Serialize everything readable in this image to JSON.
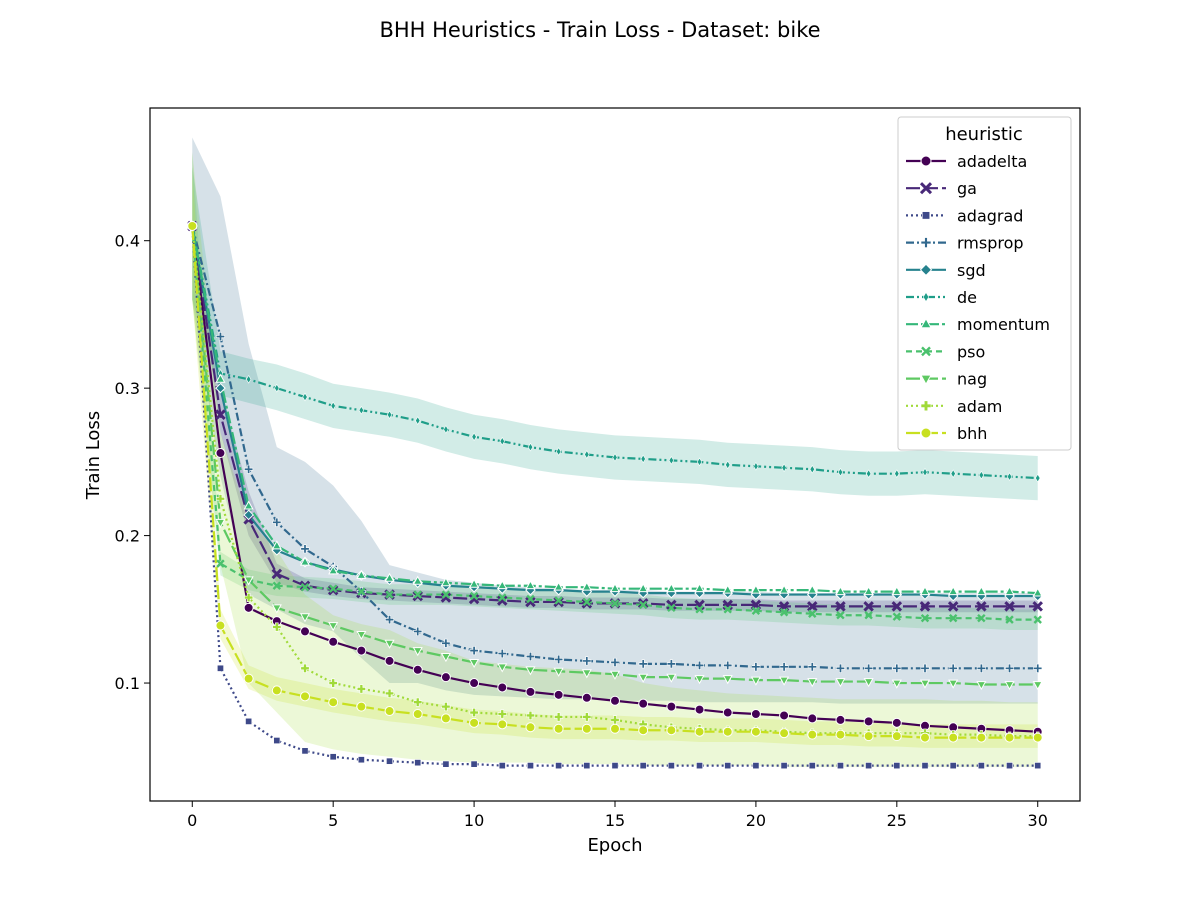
{
  "chart_data": {
    "type": "line",
    "title": "BHH Heuristics - Train Loss - Dataset: bike",
    "xlabel": "Epoch",
    "ylabel": "Train Loss",
    "xlim": [
      -1.5,
      31.5
    ],
    "ylim": [
      0.02,
      0.49
    ],
    "xticks": [
      0,
      5,
      10,
      15,
      20,
      25,
      30
    ],
    "yticks": [
      0.1,
      0.2,
      0.3,
      0.4
    ],
    "grid": false,
    "legend": {
      "title": "heuristic",
      "placement": "top-right"
    },
    "x": [
      0,
      1,
      2,
      3,
      4,
      5,
      6,
      7,
      8,
      9,
      10,
      11,
      12,
      13,
      14,
      15,
      16,
      17,
      18,
      19,
      20,
      21,
      22,
      23,
      24,
      25,
      26,
      27,
      28,
      29,
      30
    ],
    "series": [
      {
        "name": "adadelta",
        "color": "#440154",
        "marker": "circle",
        "dash": "solid",
        "values": [
          0.41,
          0.256,
          0.151,
          0.142,
          0.135,
          0.128,
          0.122,
          0.115,
          0.109,
          0.104,
          0.1,
          0.097,
          0.094,
          0.092,
          0.09,
          0.088,
          0.086,
          0.084,
          0.082,
          0.08,
          0.079,
          0.078,
          0.076,
          0.075,
          0.074,
          0.073,
          0.071,
          0.07,
          0.069,
          0.068,
          0.067
        ]
      },
      {
        "name": "ga",
        "color": "#482878",
        "marker": "x",
        "dash": "long-dash",
        "values": [
          0.41,
          0.282,
          0.211,
          0.174,
          0.166,
          0.163,
          0.161,
          0.16,
          0.159,
          0.158,
          0.157,
          0.156,
          0.155,
          0.155,
          0.154,
          0.154,
          0.154,
          0.153,
          0.153,
          0.153,
          0.153,
          0.152,
          0.152,
          0.152,
          0.152,
          0.152,
          0.152,
          0.152,
          0.152,
          0.152,
          0.152
        ],
        "band": [
          [
            0.41,
            0.41
          ],
          [
            0.27,
            0.3
          ],
          [
            0.2,
            0.23
          ],
          [
            0.168,
            0.181
          ],
          [
            0.162,
            0.171
          ],
          [
            0.159,
            0.168
          ],
          [
            0.157,
            0.165
          ],
          [
            0.156,
            0.164
          ],
          [
            0.155,
            0.163
          ],
          [
            0.154,
            0.162
          ],
          [
            0.153,
            0.161
          ],
          [
            0.152,
            0.16
          ],
          [
            0.151,
            0.159
          ],
          [
            0.151,
            0.159
          ],
          [
            0.15,
            0.158
          ],
          [
            0.15,
            0.158
          ],
          [
            0.15,
            0.158
          ],
          [
            0.149,
            0.157
          ],
          [
            0.149,
            0.157
          ],
          [
            0.149,
            0.157
          ],
          [
            0.149,
            0.157
          ],
          [
            0.148,
            0.156
          ],
          [
            0.148,
            0.156
          ],
          [
            0.148,
            0.156
          ],
          [
            0.148,
            0.156
          ],
          [
            0.148,
            0.156
          ],
          [
            0.148,
            0.156
          ],
          [
            0.148,
            0.156
          ],
          [
            0.148,
            0.156
          ],
          [
            0.148,
            0.156
          ],
          [
            0.148,
            0.156
          ]
        ]
      },
      {
        "name": "adagrad",
        "color": "#3e4989",
        "marker": "square",
        "dash": "dotted",
        "values": [
          0.41,
          0.11,
          0.074,
          0.061,
          0.054,
          0.05,
          0.048,
          0.047,
          0.046,
          0.045,
          0.045,
          0.044,
          0.044,
          0.044,
          0.044,
          0.044,
          0.044,
          0.044,
          0.044,
          0.044,
          0.044,
          0.044,
          0.044,
          0.044,
          0.044,
          0.044,
          0.044,
          0.044,
          0.044,
          0.044,
          0.044
        ]
      },
      {
        "name": "rmsprop",
        "color": "#31688e",
        "marker": "plus",
        "dash": "dash-dot",
        "values": [
          0.41,
          0.335,
          0.245,
          0.209,
          0.191,
          0.179,
          0.162,
          0.143,
          0.135,
          0.127,
          0.122,
          0.12,
          0.118,
          0.116,
          0.115,
          0.114,
          0.113,
          0.113,
          0.112,
          0.112,
          0.111,
          0.111,
          0.111,
          0.11,
          0.11,
          0.11,
          0.11,
          0.11,
          0.11,
          0.11,
          0.11
        ],
        "band": [
          [
            0.36,
            0.47
          ],
          [
            0.24,
            0.43
          ],
          [
            0.16,
            0.33
          ],
          [
            0.15,
            0.26
          ],
          [
            0.14,
            0.25
          ],
          [
            0.135,
            0.234
          ],
          [
            0.117,
            0.21
          ],
          [
            0.1,
            0.18
          ],
          [
            0.1,
            0.175
          ],
          [
            0.095,
            0.17
          ],
          [
            0.092,
            0.168
          ],
          [
            0.091,
            0.166
          ],
          [
            0.09,
            0.165
          ],
          [
            0.089,
            0.164
          ],
          [
            0.089,
            0.163
          ],
          [
            0.088,
            0.163
          ],
          [
            0.088,
            0.163
          ],
          [
            0.088,
            0.162
          ],
          [
            0.087,
            0.162
          ],
          [
            0.087,
            0.162
          ],
          [
            0.087,
            0.162
          ],
          [
            0.087,
            0.161
          ],
          [
            0.087,
            0.161
          ],
          [
            0.086,
            0.161
          ],
          [
            0.086,
            0.161
          ],
          [
            0.086,
            0.161
          ],
          [
            0.086,
            0.161
          ],
          [
            0.086,
            0.161
          ],
          [
            0.086,
            0.161
          ],
          [
            0.086,
            0.161
          ],
          [
            0.086,
            0.161
          ]
        ]
      },
      {
        "name": "sgd",
        "color": "#26828e",
        "marker": "diamond",
        "dash": "solid",
        "values": [
          0.41,
          0.3,
          0.214,
          0.19,
          0.182,
          0.177,
          0.173,
          0.17,
          0.168,
          0.166,
          0.165,
          0.164,
          0.163,
          0.163,
          0.162,
          0.162,
          0.161,
          0.161,
          0.161,
          0.161,
          0.16,
          0.16,
          0.16,
          0.16,
          0.16,
          0.16,
          0.16,
          0.159,
          0.159,
          0.159,
          0.159
        ]
      },
      {
        "name": "de",
        "color": "#1f9e89",
        "marker": "diamond-thin",
        "dash": "dash-dot-dot",
        "values": [
          0.41,
          0.31,
          0.306,
          0.3,
          0.294,
          0.288,
          0.285,
          0.282,
          0.278,
          0.272,
          0.267,
          0.264,
          0.26,
          0.257,
          0.255,
          0.253,
          0.252,
          0.251,
          0.25,
          0.248,
          0.247,
          0.246,
          0.245,
          0.243,
          0.242,
          0.242,
          0.243,
          0.242,
          0.241,
          0.24,
          0.239
        ],
        "band": [
          [
            0.36,
            0.45
          ],
          [
            0.295,
            0.325
          ],
          [
            0.29,
            0.32
          ],
          [
            0.285,
            0.316
          ],
          [
            0.279,
            0.31
          ],
          [
            0.273,
            0.303
          ],
          [
            0.27,
            0.3
          ],
          [
            0.267,
            0.297
          ],
          [
            0.263,
            0.293
          ],
          [
            0.257,
            0.287
          ],
          [
            0.252,
            0.282
          ],
          [
            0.249,
            0.279
          ],
          [
            0.245,
            0.275
          ],
          [
            0.242,
            0.272
          ],
          [
            0.24,
            0.27
          ],
          [
            0.238,
            0.268
          ],
          [
            0.237,
            0.267
          ],
          [
            0.236,
            0.266
          ],
          [
            0.235,
            0.265
          ],
          [
            0.233,
            0.263
          ],
          [
            0.232,
            0.262
          ],
          [
            0.231,
            0.261
          ],
          [
            0.23,
            0.26
          ],
          [
            0.228,
            0.258
          ],
          [
            0.227,
            0.257
          ],
          [
            0.227,
            0.257
          ],
          [
            0.228,
            0.258
          ],
          [
            0.227,
            0.257
          ],
          [
            0.226,
            0.256
          ],
          [
            0.225,
            0.255
          ],
          [
            0.224,
            0.254
          ]
        ]
      },
      {
        "name": "momentum",
        "color": "#35b779",
        "marker": "triangle-up",
        "dash": "long-dash-dot",
        "values": [
          0.41,
          0.306,
          0.22,
          0.193,
          0.182,
          0.176,
          0.173,
          0.171,
          0.169,
          0.168,
          0.167,
          0.166,
          0.166,
          0.165,
          0.165,
          0.164,
          0.164,
          0.164,
          0.164,
          0.163,
          0.163,
          0.163,
          0.163,
          0.162,
          0.162,
          0.162,
          0.162,
          0.162,
          0.162,
          0.162,
          0.161
        ]
      },
      {
        "name": "pso",
        "color": "#4ac16d",
        "marker": "x-small",
        "dash": "dashed",
        "values": [
          0.41,
          0.181,
          0.17,
          0.166,
          0.165,
          0.164,
          0.162,
          0.16,
          0.16,
          0.16,
          0.159,
          0.158,
          0.157,
          0.156,
          0.155,
          0.154,
          0.153,
          0.151,
          0.15,
          0.15,
          0.149,
          0.148,
          0.147,
          0.146,
          0.146,
          0.145,
          0.144,
          0.144,
          0.144,
          0.143,
          0.143
        ],
        "band": [
          [
            0.36,
            0.46
          ],
          [
            0.173,
            0.189
          ],
          [
            0.163,
            0.177
          ],
          [
            0.159,
            0.173
          ],
          [
            0.158,
            0.172
          ],
          [
            0.157,
            0.171
          ],
          [
            0.155,
            0.169
          ],
          [
            0.153,
            0.167
          ],
          [
            0.153,
            0.167
          ],
          [
            0.153,
            0.167
          ],
          [
            0.152,
            0.166
          ],
          [
            0.151,
            0.165
          ],
          [
            0.15,
            0.164
          ],
          [
            0.149,
            0.163
          ],
          [
            0.148,
            0.162
          ],
          [
            0.147,
            0.161
          ],
          [
            0.146,
            0.16
          ],
          [
            0.144,
            0.158
          ],
          [
            0.143,
            0.157
          ],
          [
            0.143,
            0.157
          ],
          [
            0.142,
            0.156
          ],
          [
            0.141,
            0.155
          ],
          [
            0.14,
            0.154
          ],
          [
            0.139,
            0.153
          ],
          [
            0.139,
            0.153
          ],
          [
            0.138,
            0.152
          ],
          [
            0.137,
            0.151
          ],
          [
            0.137,
            0.151
          ],
          [
            0.137,
            0.151
          ],
          [
            0.136,
            0.15
          ],
          [
            0.136,
            0.15
          ]
        ]
      },
      {
        "name": "nag",
        "color": "#5ec962",
        "marker": "triangle-down",
        "dash": "long-dash",
        "values": [
          0.41,
          0.209,
          0.17,
          0.151,
          0.145,
          0.139,
          0.133,
          0.127,
          0.122,
          0.118,
          0.114,
          0.111,
          0.109,
          0.108,
          0.107,
          0.106,
          0.104,
          0.104,
          0.103,
          0.103,
          0.102,
          0.102,
          0.101,
          0.101,
          0.101,
          0.1,
          0.1,
          0.1,
          0.099,
          0.099,
          0.099
        ]
      },
      {
        "name": "adam",
        "color": "#a0da39",
        "marker": "plus-thick",
        "dash": "dotted",
        "values": [
          0.41,
          0.225,
          0.158,
          0.138,
          0.11,
          0.1,
          0.096,
          0.093,
          0.087,
          0.084,
          0.08,
          0.079,
          0.078,
          0.077,
          0.077,
          0.075,
          0.072,
          0.07,
          0.069,
          0.068,
          0.068,
          0.067,
          0.066,
          0.066,
          0.066,
          0.066,
          0.066,
          0.065,
          0.065,
          0.064,
          0.064
        ],
        "band": [
          [
            0.36,
            0.46
          ],
          [
            0.18,
            0.27
          ],
          [
            0.1,
            0.21
          ],
          [
            0.08,
            0.19
          ],
          [
            0.06,
            0.16
          ],
          [
            0.055,
            0.146
          ],
          [
            0.052,
            0.14
          ],
          [
            0.05,
            0.136
          ],
          [
            0.048,
            0.127
          ],
          [
            0.047,
            0.122
          ],
          [
            0.046,
            0.115
          ],
          [
            0.046,
            0.113
          ],
          [
            0.046,
            0.111
          ],
          [
            0.045,
            0.11
          ],
          [
            0.045,
            0.109
          ],
          [
            0.045,
            0.106
          ],
          [
            0.044,
            0.1
          ],
          [
            0.044,
            0.097
          ],
          [
            0.044,
            0.095
          ],
          [
            0.044,
            0.093
          ],
          [
            0.044,
            0.092
          ],
          [
            0.043,
            0.091
          ],
          [
            0.043,
            0.09
          ],
          [
            0.043,
            0.089
          ],
          [
            0.043,
            0.089
          ],
          [
            0.043,
            0.089
          ],
          [
            0.043,
            0.089
          ],
          [
            0.043,
            0.088
          ],
          [
            0.043,
            0.088
          ],
          [
            0.043,
            0.087
          ],
          [
            0.043,
            0.087
          ]
        ]
      },
      {
        "name": "bhh",
        "color": "#c8e020",
        "marker": "circle",
        "dash": "long-dash",
        "values": [
          0.41,
          0.139,
          0.103,
          0.095,
          0.091,
          0.087,
          0.084,
          0.081,
          0.079,
          0.076,
          0.073,
          0.072,
          0.07,
          0.069,
          0.069,
          0.069,
          0.068,
          0.068,
          0.067,
          0.067,
          0.067,
          0.066,
          0.065,
          0.065,
          0.064,
          0.064,
          0.063,
          0.063,
          0.063,
          0.063,
          0.063
        ],
        "band": [
          [
            0.36,
            0.45
          ],
          [
            0.13,
            0.15
          ],
          [
            0.096,
            0.112
          ],
          [
            0.088,
            0.104
          ],
          [
            0.084,
            0.1
          ],
          [
            0.08,
            0.096
          ],
          [
            0.077,
            0.093
          ],
          [
            0.074,
            0.09
          ],
          [
            0.072,
            0.088
          ],
          [
            0.069,
            0.085
          ],
          [
            0.066,
            0.082
          ],
          [
            0.065,
            0.081
          ],
          [
            0.063,
            0.079
          ],
          [
            0.062,
            0.078
          ],
          [
            0.062,
            0.078
          ],
          [
            0.062,
            0.078
          ],
          [
            0.061,
            0.077
          ],
          [
            0.061,
            0.077
          ],
          [
            0.06,
            0.076
          ],
          [
            0.06,
            0.076
          ],
          [
            0.06,
            0.076
          ],
          [
            0.059,
            0.075
          ],
          [
            0.058,
            0.074
          ],
          [
            0.058,
            0.074
          ],
          [
            0.057,
            0.073
          ],
          [
            0.057,
            0.073
          ],
          [
            0.056,
            0.072
          ],
          [
            0.056,
            0.072
          ],
          [
            0.056,
            0.072
          ],
          [
            0.056,
            0.072
          ],
          [
            0.056,
            0.072
          ]
        ]
      }
    ]
  }
}
